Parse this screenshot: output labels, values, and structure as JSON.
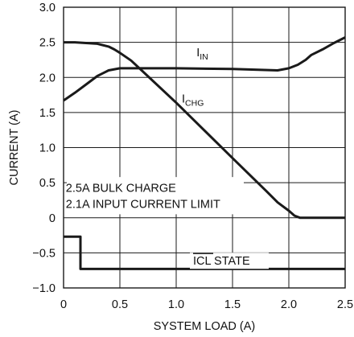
{
  "chart_data": {
    "type": "line",
    "xlabel": "SYSTEM LOAD (A)",
    "ylabel": "CURRENT (A)",
    "xlim": [
      0,
      2.5
    ],
    "ylim": [
      -1.0,
      3.0
    ],
    "x_ticks": [
      0,
      0.5,
      1.0,
      1.5,
      2.0,
      2.5
    ],
    "x_tick_labels": [
      "0",
      "0.5",
      "1.0",
      "1.5",
      "2.0",
      "2.5"
    ],
    "y_ticks": [
      -1.0,
      -0.5,
      0,
      0.5,
      1.0,
      1.5,
      2.0,
      2.5,
      3.0
    ],
    "y_tick_labels": [
      "−1.0",
      "−0.5",
      "0",
      "0.5",
      "1.0",
      "1.5",
      "2.0",
      "2.5",
      "3.0"
    ],
    "grid": true,
    "line_color": "#1a1a1a",
    "series": [
      {
        "name": "I_IN",
        "label_main": "I",
        "label_sub": "IN",
        "x": [
          0,
          0.1,
          0.2,
          0.3,
          0.4,
          0.5,
          0.7,
          1.0,
          1.5,
          1.9,
          2.0,
          2.08,
          2.15,
          2.2,
          2.3,
          2.4,
          2.5
        ],
        "y": [
          1.67,
          1.78,
          1.9,
          2.02,
          2.1,
          2.13,
          2.13,
          2.13,
          2.12,
          2.1,
          2.13,
          2.18,
          2.25,
          2.32,
          2.4,
          2.49,
          2.57
        ]
      },
      {
        "name": "I_CHG",
        "label_main": "I",
        "label_sub": "CHG",
        "x": [
          0,
          0.1,
          0.2,
          0.3,
          0.4,
          0.45,
          0.5,
          0.6,
          0.7,
          1.0,
          1.5,
          1.8,
          1.9,
          2.0,
          2.05,
          2.1,
          2.2,
          2.3,
          2.4,
          2.5
        ],
        "y": [
          2.5,
          2.5,
          2.49,
          2.48,
          2.44,
          2.4,
          2.35,
          2.24,
          2.09,
          1.64,
          0.85,
          0.38,
          0.22,
          0.1,
          0.03,
          0.0,
          0.0,
          0.0,
          0.0,
          0.0
        ]
      },
      {
        "name": "ICL STATE",
        "label_main": "ICL STATE",
        "x": [
          0,
          0.15,
          0.15,
          2.5
        ],
        "y": [
          -0.27,
          -0.27,
          -0.73,
          -0.73
        ]
      }
    ],
    "annotations": [
      "2.5A BULK CHARGE",
      "2.1A INPUT CURRENT LIMIT"
    ]
  }
}
